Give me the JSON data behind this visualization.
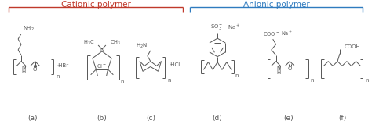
{
  "cationic_label": "Cationic polymer",
  "anionic_label": "Anionic polymer",
  "cationic_color": "#c0392b",
  "anionic_color": "#2f7bbf",
  "bg_color": "#ffffff",
  "label_a": "(a)",
  "label_b": "(b)",
  "label_c": "(c)",
  "label_d": "(d)",
  "label_e": "(e)",
  "label_f": "(f)",
  "structure_color": "#555555",
  "fontsize_label": 6.5,
  "fontsize_title": 7.5,
  "figsize": [
    4.74,
    1.59
  ],
  "dpi": 100
}
